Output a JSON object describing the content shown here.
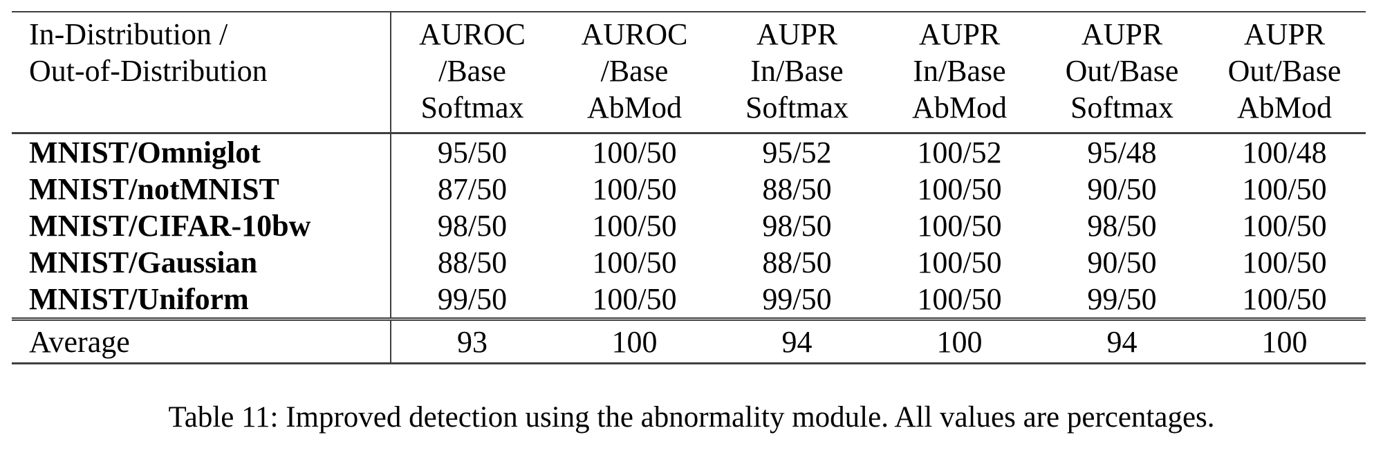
{
  "table": {
    "header": {
      "distribution_col": {
        "line1": "In-Distribution /",
        "line2": "Out-of-Distribution"
      },
      "metric_columns": [
        {
          "line1": "AUROC",
          "line2": "/Base",
          "line3": "Softmax"
        },
        {
          "line1": "AUROC",
          "line2": "/Base",
          "line3": "AbMod"
        },
        {
          "line1": "AUPR",
          "line2": "In/Base",
          "line3": "Softmax"
        },
        {
          "line1": "AUPR",
          "line2": "In/Base",
          "line3": "AbMod"
        },
        {
          "line1": "AUPR",
          "line2": "Out/Base",
          "line3": "Softmax"
        },
        {
          "line1": "AUPR",
          "line2": "Out/Base",
          "line3": "AbMod"
        }
      ]
    },
    "rows": [
      {
        "label": "MNIST/Omniglot",
        "values": [
          "95/50",
          "100/50",
          "95/52",
          "100/52",
          "95/48",
          "100/48"
        ]
      },
      {
        "label": "MNIST/notMNIST",
        "values": [
          "87/50",
          "100/50",
          "88/50",
          "100/50",
          "90/50",
          "100/50"
        ]
      },
      {
        "label": "MNIST/CIFAR-10bw",
        "values": [
          "98/50",
          "100/50",
          "98/50",
          "100/50",
          "98/50",
          "100/50"
        ]
      },
      {
        "label": "MNIST/Gaussian",
        "values": [
          "88/50",
          "100/50",
          "88/50",
          "100/50",
          "90/50",
          "100/50"
        ]
      },
      {
        "label": "MNIST/Uniform",
        "values": [
          "99/50",
          "100/50",
          "99/50",
          "100/50",
          "99/50",
          "100/50"
        ]
      }
    ],
    "footer": {
      "label": "Average",
      "values": [
        "93",
        "100",
        "94",
        "100",
        "94",
        "100"
      ]
    }
  },
  "caption": "Table 11: Improved detection using the abnormality module. All values are percentages.",
  "colors": {
    "text": "#000000",
    "rule": "#3f3f3f",
    "background": "#ffffff"
  }
}
